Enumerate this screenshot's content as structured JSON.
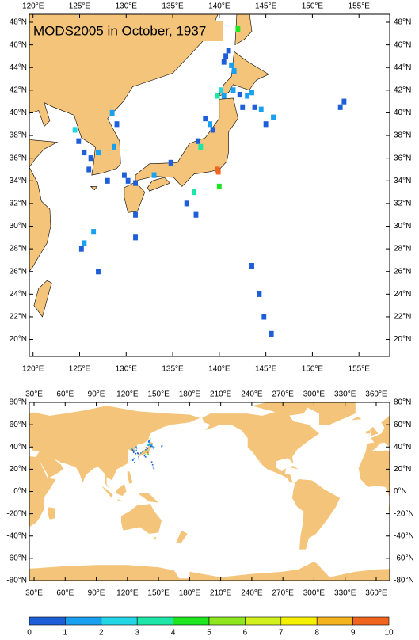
{
  "title": "MODS2005 in October, 1937",
  "top_map": {
    "lon_range": [
      119.6,
      158.3
    ],
    "lat_range": [
      18.5,
      48.7
    ],
    "xticks": [
      {
        "value": 120,
        "label": "120°E"
      },
      {
        "value": 125,
        "label": "125°E"
      },
      {
        "value": 130,
        "label": "130°E"
      },
      {
        "value": 135,
        "label": "135°E"
      },
      {
        "value": 140,
        "label": "140°E"
      },
      {
        "value": 145,
        "label": "145°E"
      },
      {
        "value": 150,
        "label": "150°E"
      },
      {
        "value": 155,
        "label": "155°E"
      }
    ],
    "yticks": [
      {
        "value": 20,
        "label": "20°N"
      },
      {
        "value": 22,
        "label": "22°N"
      },
      {
        "value": 24,
        "label": "24°N"
      },
      {
        "value": 26,
        "label": "26°N"
      },
      {
        "value": 28,
        "label": "28°N"
      },
      {
        "value": 30,
        "label": "30°N"
      },
      {
        "value": 32,
        "label": "32°N"
      },
      {
        "value": 34,
        "label": "34°N"
      },
      {
        "value": 36,
        "label": "36°N"
      },
      {
        "value": 38,
        "label": "38°N"
      },
      {
        "value": 40,
        "label": "40°N"
      },
      {
        "value": 42,
        "label": "42°N"
      },
      {
        "value": 44,
        "label": "44°N"
      },
      {
        "value": 46,
        "label": "46°N"
      },
      {
        "value": 48,
        "label": "48°N"
      }
    ]
  },
  "bottom_map": {
    "lon_range": [
      25.4,
      373
    ],
    "lat_range": [
      -80,
      80
    ],
    "xticks": [
      {
        "value": 30,
        "label": "30°E"
      },
      {
        "value": 60,
        "label": "60°E"
      },
      {
        "value": 90,
        "label": "90°E"
      },
      {
        "value": 120,
        "label": "120°E"
      },
      {
        "value": 150,
        "label": "150°E"
      },
      {
        "value": 180,
        "label": "180°E"
      },
      {
        "value": 210,
        "label": "210°E"
      },
      {
        "value": 240,
        "label": "240°E"
      },
      {
        "value": 270,
        "label": "270°E"
      },
      {
        "value": 300,
        "label": "300°E"
      },
      {
        "value": 330,
        "label": "330°E"
      },
      {
        "value": 360,
        "label": "360°E"
      }
    ],
    "yticks": [
      {
        "value": -80,
        "label": "-80°N"
      },
      {
        "value": -60,
        "label": "-60°N"
      },
      {
        "value": -40,
        "label": "-40°N"
      },
      {
        "value": -20,
        "label": "-20°N"
      },
      {
        "value": 0,
        "label": "0°N"
      },
      {
        "value": 20,
        "label": "20°N"
      },
      {
        "value": 40,
        "label": "40°N"
      },
      {
        "value": 60,
        "label": "60°N"
      },
      {
        "value": 80,
        "label": "80°N"
      }
    ]
  },
  "colorbar": {
    "levels": [
      0,
      1,
      2,
      3,
      4,
      5,
      6,
      7,
      8,
      9,
      10
    ],
    "colors": [
      "#1f5ed9",
      "#1aa0f0",
      "#22d6e6",
      "#1ee6a8",
      "#1ee61e",
      "#8ee61e",
      "#d2f01e",
      "#f5f000",
      "#f5b41e",
      "#f0641e"
    ]
  },
  "cells": {
    "lon": [
      142.0,
      141.0,
      140.7,
      140.5,
      141.3,
      141.6,
      140.2,
      139.8,
      140.5,
      141.5,
      142.2,
      143.0,
      143.5,
      143.8,
      142.5,
      144.5,
      145.8,
      145.0,
      138.5,
      139.0,
      139.3,
      137.7,
      138.0,
      139.8,
      140.0,
      124.5,
      124.9,
      125.5,
      126.2,
      126.0,
      127.0,
      128.5,
      129.0,
      128.7,
      128.0,
      129.8,
      130.2,
      131.0,
      134.8,
      136.5,
      137.5,
      133.0,
      131.0,
      131.0,
      126.5,
      125.5,
      125.2,
      127.0,
      137.3,
      139.9,
      143.5,
      144.3,
      144.8,
      145.6,
      153.0,
      153.4
    ],
    "lat": [
      47.4,
      45.5,
      45.0,
      44.5,
      44.2,
      43.7,
      42.0,
      41.5,
      41.5,
      42.0,
      41.6,
      41.5,
      41.8,
      40.5,
      40.5,
      40.3,
      39.6,
      39.0,
      39.5,
      39.0,
      38.5,
      37.5,
      37.0,
      35.0,
      33.5,
      38.5,
      37.5,
      36.5,
      36.0,
      35.0,
      36.5,
      40.0,
      39.0,
      37.0,
      34.0,
      34.5,
      34.0,
      33.8,
      35.6,
      32.0,
      31.0,
      34.5,
      31.0,
      29.0,
      29.5,
      28.5,
      28.0,
      26.0,
      33.0,
      34.8,
      26.5,
      24.0,
      22.0,
      20.5,
      40.5,
      41.0
    ],
    "values": [
      4.5,
      0.5,
      0.5,
      0.5,
      1.5,
      1.5,
      2.5,
      3.5,
      1.5,
      1.5,
      0.5,
      1.5,
      1.5,
      0.5,
      0.5,
      1.5,
      1.5,
      0.5,
      0.5,
      1.5,
      0.5,
      0.5,
      3.5,
      9.5,
      4.5,
      2.5,
      0.5,
      0.5,
      0.5,
      0.5,
      1.5,
      1.5,
      0.5,
      1.5,
      0.5,
      0.5,
      0.5,
      0.5,
      0.5,
      0.5,
      0.5,
      1.5,
      0.5,
      0.5,
      1.5,
      1.5,
      0.5,
      0.5,
      3.5,
      9.5,
      0.5,
      0.5,
      0.5,
      0.5,
      0.5,
      0.5
    ]
  }
}
